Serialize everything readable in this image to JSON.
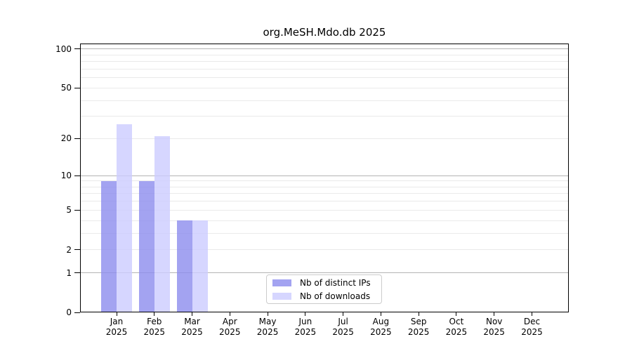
{
  "chart_data": {
    "type": "bar",
    "title": "org.MeSH.Mdo.db 2025",
    "categories": [
      "Jan 2025",
      "Feb 2025",
      "Mar 2025",
      "Apr 2025",
      "May 2025",
      "Jun 2025",
      "Jul 2025",
      "Aug 2025",
      "Sep 2025",
      "Oct 2025",
      "Nov 2025",
      "Dec 2025"
    ],
    "series": [
      {
        "name": "Nb of distinct IPs",
        "color": "#8c8cee",
        "values": [
          9,
          9,
          4,
          0,
          0,
          0,
          0,
          0,
          0,
          0,
          0,
          0
        ]
      },
      {
        "name": "Nb of downloads",
        "color": "#ccccff",
        "values": [
          26,
          21,
          4,
          0,
          0,
          0,
          0,
          0,
          0,
          0,
          0,
          0
        ]
      }
    ],
    "y_scale": "log1p",
    "ylim": [
      0,
      110
    ],
    "y_tick_values": [
      0,
      1,
      2,
      5,
      10,
      20,
      50,
      100
    ],
    "y_gridlines_major": [
      1,
      10,
      100
    ],
    "y_gridlines_minor": [
      2,
      3,
      4,
      5,
      6,
      7,
      8,
      9,
      20,
      30,
      40,
      50,
      60,
      70,
      80,
      90
    ],
    "grid": "on",
    "legend_position": "lower center inside plot",
    "xlabel": "",
    "ylabel": ""
  },
  "axes": {
    "y_ticks": [
      {
        "value": 100,
        "label": "100"
      },
      {
        "value": 50,
        "label": "50"
      },
      {
        "value": 20,
        "label": "20"
      },
      {
        "value": 10,
        "label": "10"
      },
      {
        "value": 5,
        "label": "5"
      },
      {
        "value": 2,
        "label": "2"
      },
      {
        "value": 1,
        "label": "1"
      },
      {
        "value": 0,
        "label": "0"
      }
    ],
    "x_ticks": [
      {
        "month": "Jan",
        "year": "2025"
      },
      {
        "month": "Feb",
        "year": "2025"
      },
      {
        "month": "Mar",
        "year": "2025"
      },
      {
        "month": "Apr",
        "year": "2025"
      },
      {
        "month": "May",
        "year": "2025"
      },
      {
        "month": "Jun",
        "year": "2025"
      },
      {
        "month": "Jul",
        "year": "2025"
      },
      {
        "month": "Aug",
        "year": "2025"
      },
      {
        "month": "Sep",
        "year": "2025"
      },
      {
        "month": "Oct",
        "year": "2025"
      },
      {
        "month": "Nov",
        "year": "2025"
      },
      {
        "month": "Dec",
        "year": "2025"
      }
    ]
  },
  "colors": {
    "distinct_ips": "#8c8cee",
    "downloads": "#ccccff",
    "grid_major": "#b4b4b4",
    "grid_minor": "#eaeaea",
    "spine": "#000000"
  }
}
